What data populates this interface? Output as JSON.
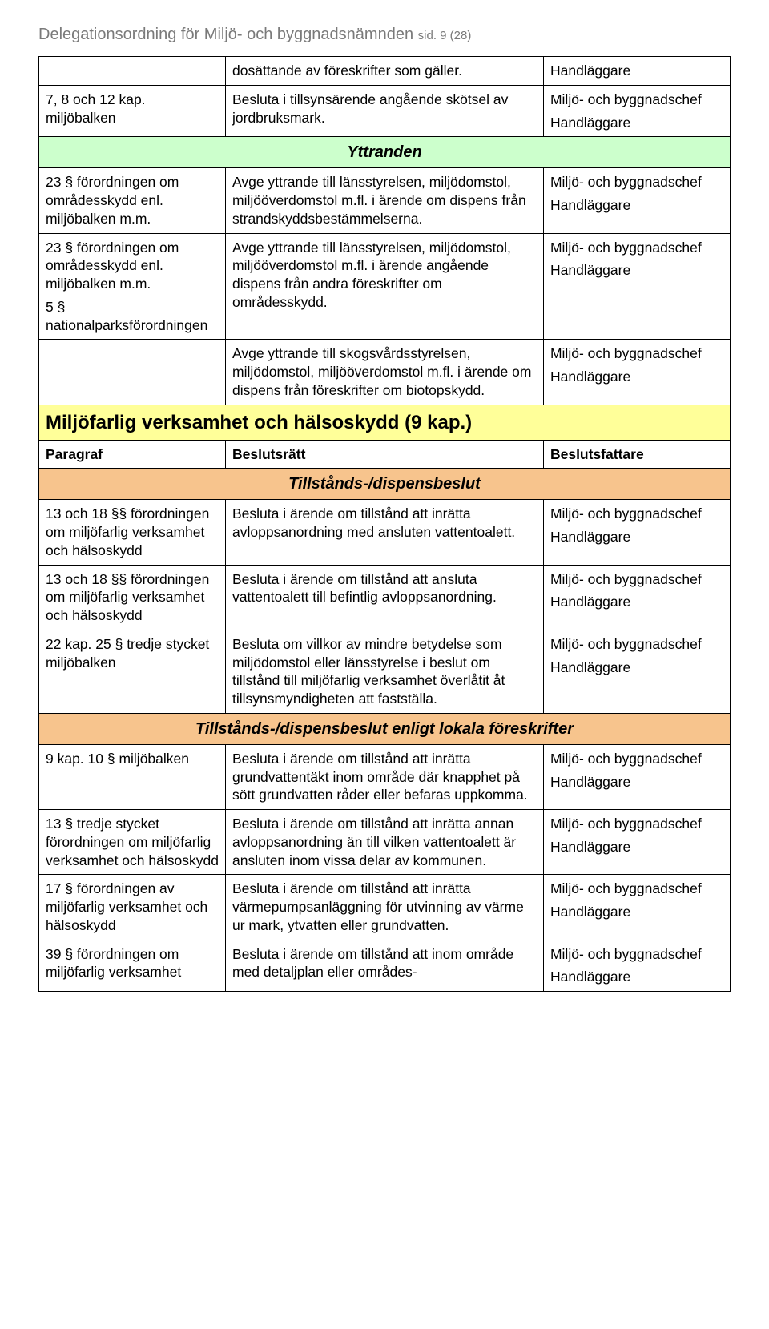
{
  "colors": {
    "header_text": "#7a7a7a",
    "section_green_bg": "#ccffcc",
    "section_yellow_bg": "#ffff99",
    "section_orange_bg": "#f7c48d",
    "border": "#000000",
    "body_text": "#000000",
    "background": "#ffffff"
  },
  "typography": {
    "body_font": "Arial",
    "body_size_pt": 13,
    "header_size_pt": 15,
    "section_heading_size_pt": 18,
    "subsection_size_pt": 15
  },
  "header": {
    "title": "Delegationsordning för Miljö- och byggnadsnämnden",
    "page_info": "sid. 9 (28)"
  },
  "rows": {
    "r1": {
      "col1": "",
      "col2": "dosättande av föreskrifter som gäller.",
      "col3": "Handläggare"
    },
    "r2": {
      "col1": "7, 8 och 12 kap. miljöbalken",
      "col2": "Besluta i tillsynsärende angående skötsel av jordbruksmark.",
      "col3a": "Miljö- och byggnadschef",
      "col3b": "Handläggare"
    },
    "yttranden_heading": "Yttranden",
    "r3": {
      "col1": "23 § förordningen om områdesskydd enl. miljöbalken m.m.",
      "col2": "Avge yttrande till länsstyrelsen, miljödomstol, miljööverdomstol m.fl. i ärende om dispens från strandskyddsbestämmelserna.",
      "col3a": "Miljö- och byggnadschef",
      "col3b": "Handläggare"
    },
    "r4": {
      "col1a": "23 § förordningen om områdesskydd enl. miljöbalken m.m.",
      "col1b": "5 § nationalparksförordningen",
      "col2": "Avge yttrande till länsstyrelsen, miljödomstol, miljööverdomstol m.fl. i ärende angående dispens från andra föreskrifter om områdesskydd.",
      "col3a": "Miljö- och byggnadschef",
      "col3b": "Handläggare"
    },
    "r5": {
      "col1": "",
      "col2": "Avge yttrande till skogsvårdsstyrelsen, miljödomstol, miljööverdomstol m.fl. i ärende om dispens från föreskrifter om biotopskydd.",
      "col3a": "Miljö- och byggnadschef",
      "col3b": "Handläggare"
    },
    "section2_heading": "Miljöfarlig verksamhet och hälsoskydd (9 kap.)",
    "header_row": {
      "col1": "Paragraf",
      "col2": "Beslutsrätt",
      "col3": "Beslutsfattare"
    },
    "tillstand_heading": "Tillstånds-/dispensbeslut",
    "r6": {
      "col1": "13 och 18 §§ förordningen om miljöfarlig verksamhet och hälsoskydd",
      "col2": "Besluta i ärende om tillstånd att inrätta avloppsanordning med ansluten vattentoalett.",
      "col3a": "Miljö- och byggnadschef",
      "col3b": "Handläggare"
    },
    "r7": {
      "col1": "13 och 18 §§ förordningen om miljöfarlig verksamhet och hälsoskydd",
      "col2": "Besluta i ärende om tillstånd att ansluta vattentoalett till befintlig avloppsanordning.",
      "col3a": "Miljö- och byggnadschef",
      "col3b": "Handläggare"
    },
    "r8": {
      "col1": "22 kap. 25 § tredje stycket miljöbalken",
      "col2": "Besluta om villkor av mindre betydelse som miljödomstol eller länsstyrelse i beslut om tillstånd till miljöfarlig verksamhet överlåtit åt tillsynsmyndigheten att fastställa.",
      "col3a": "Miljö- och byggnadschef",
      "col3b": "Handläggare"
    },
    "lokala_heading": "Tillstånds-/dispensbeslut enligt lokala föreskrifter",
    "r9": {
      "col1": "9 kap. 10 § miljöbalken",
      "col2": "Besluta i ärende om tillstånd att inrätta grundvattentäkt inom område där knapphet på sött grundvatten råder eller befaras uppkomma.",
      "col3a": "Miljö- och byggnadschef",
      "col3b": "Handläggare"
    },
    "r10": {
      "col1": "13 § tredje stycket förordningen om miljöfarlig verksamhet och hälsoskydd",
      "col2": "Besluta i ärende om tillstånd att inrätta annan avloppsanordning än till vilken vattentoalett är ansluten inom vissa delar av kommunen.",
      "col3a": "Miljö- och byggnadschef",
      "col3b": "Handläggare"
    },
    "r11": {
      "col1": "17 § förordningen av miljöfarlig verksamhet och hälsoskydd",
      "col2": "Besluta i ärende om tillstånd att inrätta värmepumpsanläggning för utvinning av värme ur mark, ytvatten eller grundvatten.",
      "col3a": "Miljö- och byggnadschef",
      "col3b": "Handläggare"
    },
    "r12": {
      "col1": "39 § förordningen om miljöfarlig verksamhet",
      "col2": "Besluta i ärende om tillstånd att inom område med detaljplan eller områdes-",
      "col3a": "Miljö- och byggnadschef",
      "col3b": "Handläggare"
    }
  }
}
